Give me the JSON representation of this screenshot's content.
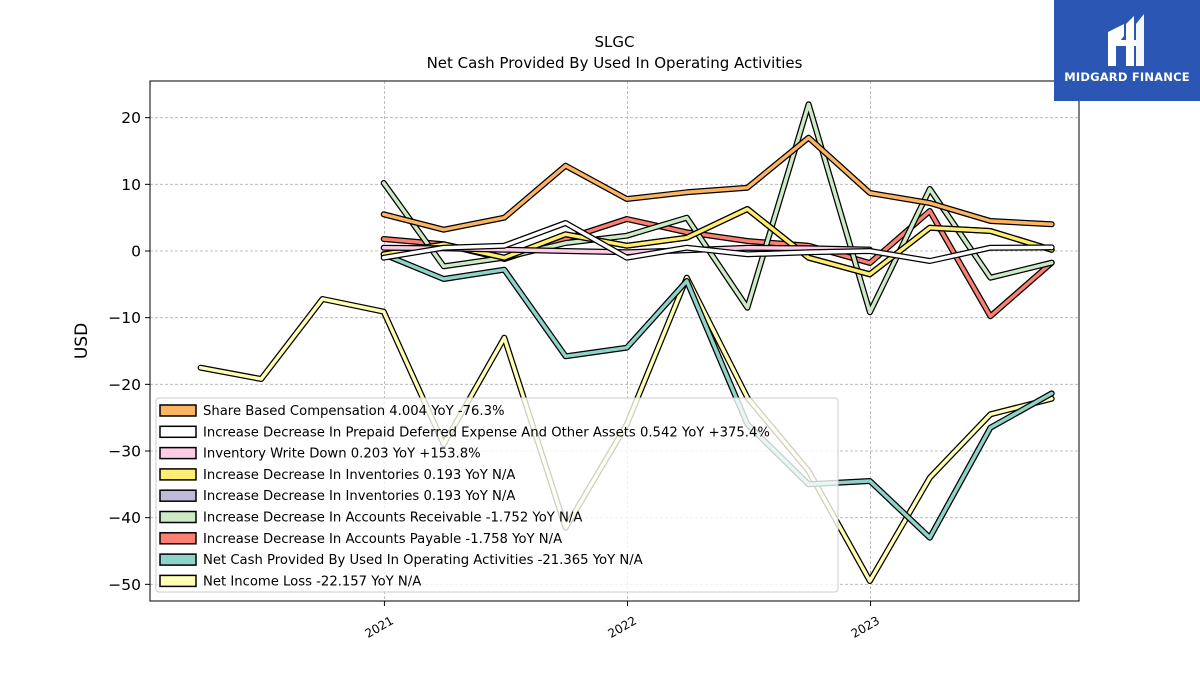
{
  "chart_data": {
    "type": "line",
    "title_line1": "SLGC",
    "title_line2": "Net Cash Provided By Used In Operating Activities",
    "ylabel": "USD",
    "xlabel": "",
    "ylim": [
      -52.5,
      25.5
    ],
    "xlim": [
      "2020-01-15",
      "2023-11-10"
    ],
    "yticks": [
      20,
      10,
      0,
      -10,
      -20,
      -30,
      -40,
      -50
    ],
    "ytick_labels": [
      "20",
      "10",
      "0",
      "−10",
      "−20",
      "−30",
      "−40",
      "−50"
    ],
    "xticks": [
      "2021-01-01",
      "2022-01-01",
      "2023-01-01"
    ],
    "xtick_labels": [
      "2021",
      "2022",
      "2023"
    ],
    "grid": true,
    "legend_position": "lower-left",
    "series": [
      {
        "name": "Net Income Loss",
        "legend": "Net Income Loss  -22.157 YoY N/A",
        "color": "#ffffb3",
        "x": [
          "2020-03-31",
          "2020-06-30",
          "2020-09-30",
          "2020-12-31",
          "2021-03-31",
          "2021-06-30",
          "2021-09-30",
          "2021-12-31",
          "2022-03-31",
          "2022-06-30",
          "2022-09-30",
          "2022-12-31",
          "2023-03-31",
          "2023-06-30",
          "2023-09-30"
        ],
        "values": [
          -17.5,
          -19.2,
          -7.2,
          -9.1,
          -29.0,
          -13.0,
          -41.5,
          -26.0,
          -4.0,
          -22.0,
          -33.0,
          -49.5,
          -34.0,
          -24.5,
          -22.157
        ]
      },
      {
        "name": "Net Cash Provided By Used In Operating Activities",
        "legend": "Net Cash Provided By Used In Operating Activities  -21.365 YoY N/A",
        "color": "#8dd3c7",
        "x": [
          "2020-12-31",
          "2021-03-31",
          "2021-06-30",
          "2021-09-30",
          "2021-12-31",
          "2022-03-31",
          "2022-06-30",
          "2022-09-30",
          "2022-12-31",
          "2023-03-31",
          "2023-06-30",
          "2023-09-30"
        ],
        "values": [
          -0.5,
          -4.2,
          -2.8,
          -15.8,
          -14.5,
          -4.5,
          -26.0,
          -35.0,
          -34.5,
          -43.0,
          -26.5,
          -21.365
        ]
      },
      {
        "name": "Increase Decrease In Accounts Payable",
        "legend": "Increase Decrease In Accounts Payable  -1.758 YoY N/A",
        "color": "#fb8072",
        "x": [
          "2020-12-31",
          "2021-03-31",
          "2021-06-30",
          "2021-09-30",
          "2021-12-31",
          "2022-03-31",
          "2022-06-30",
          "2022-09-30",
          "2022-12-31",
          "2023-03-31",
          "2023-06-30",
          "2023-09-30"
        ],
        "values": [
          1.8,
          1.0,
          -1.2,
          1.8,
          4.8,
          2.8,
          1.5,
          0.8,
          -1.8,
          6.0,
          -9.8,
          -1.758
        ]
      },
      {
        "name": "Increase Decrease In Accounts Receivable",
        "legend": "Increase Decrease In Accounts Receivable  -1.752 YoY N/A",
        "color": "#ccebc5",
        "x": [
          "2020-12-31",
          "2021-03-31",
          "2021-06-30",
          "2021-09-30",
          "2021-12-31",
          "2022-03-31",
          "2022-06-30",
          "2022-09-30",
          "2022-12-31",
          "2023-03-31",
          "2023-06-30",
          "2023-09-30"
        ],
        "values": [
          10.2,
          -2.3,
          -1.0,
          1.2,
          2.3,
          5.0,
          -8.5,
          22.0,
          -9.2,
          9.3,
          -4.0,
          -1.752
        ]
      },
      {
        "name": "Increase Decrease In Inventories",
        "legend": "Increase Decrease In Inventories  0.193 YoY N/A",
        "color": "#bebada",
        "x": [
          "2020-12-31",
          "2021-03-31",
          "2021-06-30",
          "2021-09-30",
          "2021-12-31",
          "2022-03-31",
          "2022-06-30",
          "2022-09-30",
          "2022-12-31",
          "2023-03-31",
          "2023-06-30",
          "2023-09-30"
        ],
        "values": [
          -0.5,
          1.0,
          -1.0,
          2.5,
          0.8,
          2.0,
          6.3,
          -1.0,
          -3.5,
          3.5,
          3.0,
          0.193
        ]
      },
      {
        "name": "Increase Decrease In Inventories",
        "legend": "Increase Decrease In Inventories  0.193 YoY N/A",
        "color": "#ffed6f",
        "x": [
          "2020-12-31",
          "2021-03-31",
          "2021-06-30",
          "2021-09-30",
          "2021-12-31",
          "2022-03-31",
          "2022-06-30",
          "2022-09-30",
          "2022-12-31",
          "2023-03-31",
          "2023-06-30",
          "2023-09-30"
        ],
        "values": [
          -0.5,
          1.0,
          -1.0,
          2.5,
          0.8,
          2.0,
          6.3,
          -1.0,
          -3.5,
          3.5,
          3.0,
          0.193
        ]
      },
      {
        "name": "Inventory Write Down",
        "legend": "Inventory Write Down  0.203 YoY +153.8%",
        "color": "#fccde5",
        "x": [
          "2020-12-31",
          "2021-03-31",
          "2021-06-30",
          "2021-09-30",
          "2021-12-31",
          "2022-03-31",
          "2022-06-30",
          "2022-09-30",
          "2022-12-31"
        ],
        "values": [
          0.5,
          0.4,
          0.2,
          0.0,
          -0.2,
          0.1,
          0.5,
          0.4,
          0.203
        ]
      },
      {
        "name": "Increase Decrease In Prepaid Deferred Expense And Other Assets",
        "legend": "Increase Decrease In Prepaid Deferred Expense And Other Assets  0.542 YoY +375.4%",
        "color": "#ffffff",
        "x": [
          "2020-12-31",
          "2021-03-31",
          "2021-06-30",
          "2021-09-30",
          "2021-12-31",
          "2022-03-31",
          "2022-06-30",
          "2022-09-30",
          "2022-12-31",
          "2023-03-31",
          "2023-06-30",
          "2023-09-30"
        ],
        "values": [
          -1.0,
          0.5,
          0.8,
          4.2,
          -1.0,
          0.5,
          -0.5,
          -0.2,
          0.0,
          -1.5,
          0.5,
          0.542
        ]
      },
      {
        "name": "Share Based Compensation",
        "legend": "Share Based Compensation  4.004 YoY -76.3%",
        "color": "#fdb462",
        "x": [
          "2020-12-31",
          "2021-03-31",
          "2021-06-30",
          "2021-09-30",
          "2021-12-31",
          "2022-03-31",
          "2022-06-30",
          "2022-09-30",
          "2022-12-31",
          "2023-03-31",
          "2023-06-30",
          "2023-09-30"
        ],
        "values": [
          5.5,
          3.2,
          5.0,
          12.8,
          7.8,
          8.8,
          9.5,
          17.0,
          8.7,
          7.2,
          4.5,
          4.004
        ]
      }
    ],
    "legend_order": [
      8,
      7,
      6,
      5,
      4,
      3,
      2,
      1,
      0
    ]
  },
  "logo": {
    "text": "MIDGARD FINANCE",
    "background": "#2c56b3"
  }
}
